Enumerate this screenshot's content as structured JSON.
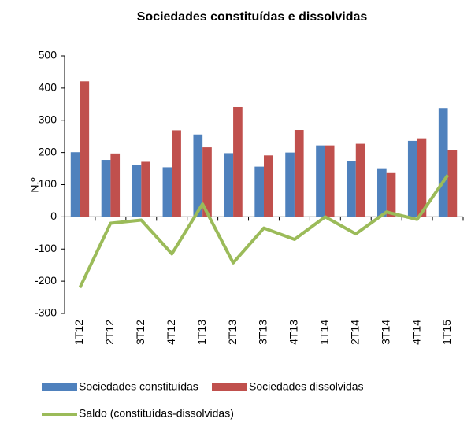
{
  "chart_data": {
    "type": "bar-line",
    "title": "Sociedades constituídas e dissolvidas",
    "y_label": "N.º",
    "categories": [
      "1T12",
      "2T12",
      "3T12",
      "4T12",
      "1T13",
      "2T13",
      "3T13",
      "4T13",
      "1T14",
      "2T14",
      "3T14",
      "4T14",
      "1T15"
    ],
    "series": [
      {
        "name": "Sociedades constituídas",
        "type": "bar",
        "color": "#4f81bd",
        "values": [
          201,
          177,
          161,
          154,
          256,
          198,
          156,
          200,
          222,
          174,
          151,
          236,
          338
        ]
      },
      {
        "name": "Sociedades dissolvidas",
        "type": "bar",
        "color": "#c0504d",
        "values": [
          421,
          197,
          171,
          269,
          216,
          341,
          191,
          270,
          222,
          227,
          136,
          244,
          208
        ]
      },
      {
        "name": "Saldo (constituídas-dissolvidas)",
        "type": "line",
        "color": "#9bbb59",
        "values": [
          -220,
          -20,
          -10,
          -115,
          40,
          -143,
          -35,
          -70,
          0,
          -53,
          15,
          -8,
          130
        ]
      }
    ],
    "ylim": [
      -300,
      500
    ],
    "yticks": [
      -300,
      -200,
      -100,
      0,
      100,
      200,
      300,
      400,
      500
    ]
  }
}
